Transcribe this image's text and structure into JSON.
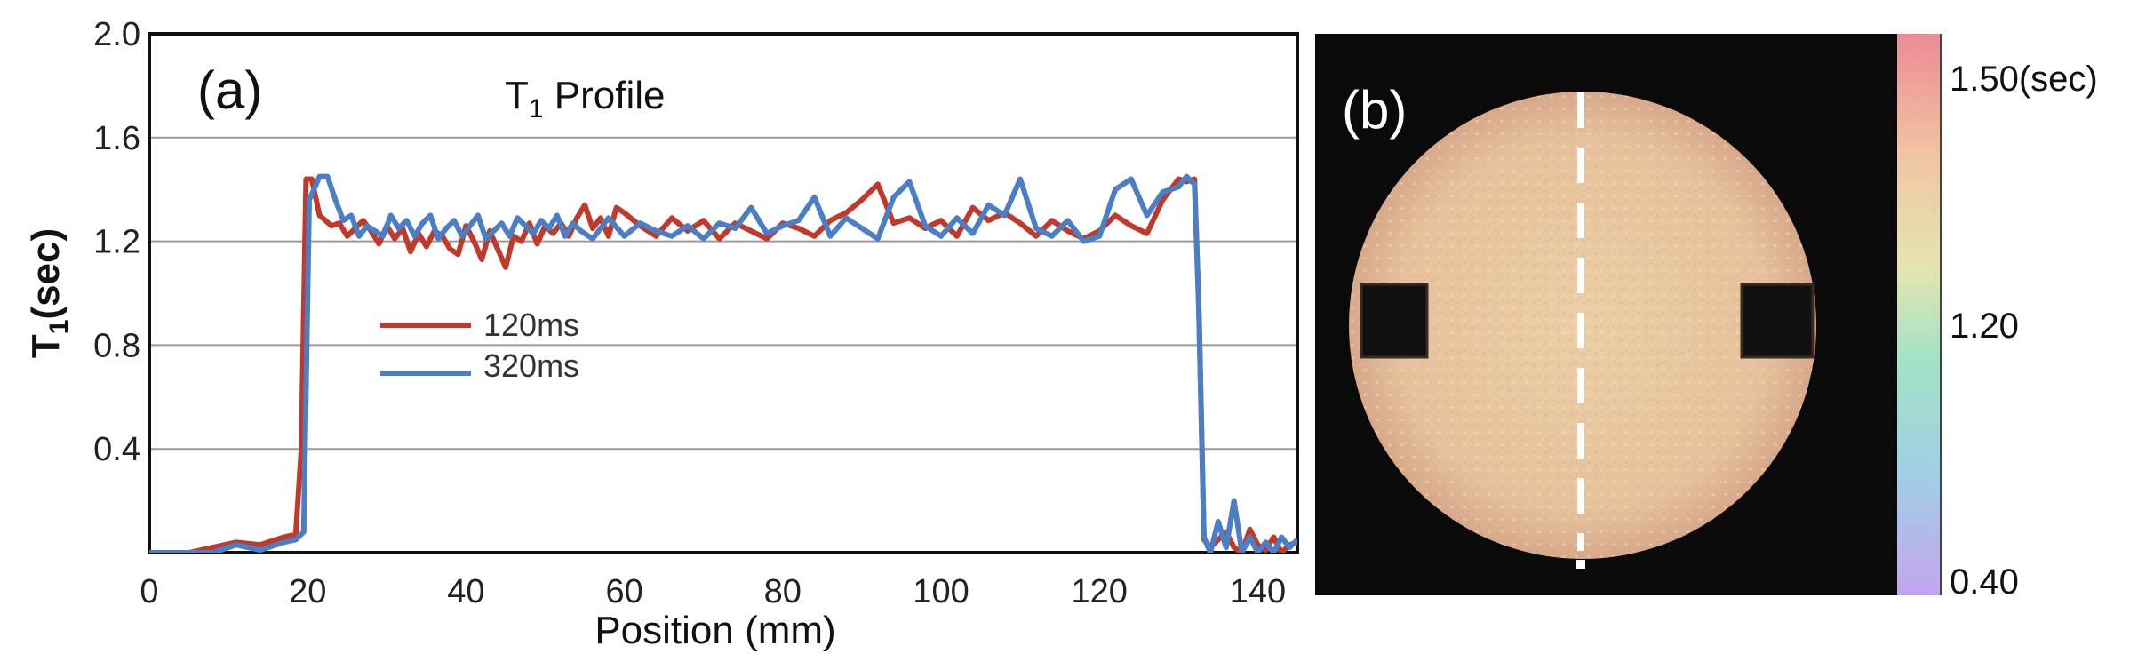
{
  "chart_data": [
    {
      "type": "line",
      "panel_label": "(a)",
      "title_main": "T",
      "title_sub": "1",
      "title_rest": " Profile",
      "xlabel": "Position (mm)",
      "ylabel_main": "T",
      "ylabel_sub": "1",
      "ylabel_rest": "(sec)",
      "xlim": [
        0,
        145
      ],
      "ylim": [
        0,
        2.0
      ],
      "xticks": [
        0,
        20,
        40,
        60,
        80,
        100,
        120,
        140
      ],
      "xtick_labels": [
        "0",
        "20",
        "40",
        "60",
        "80",
        "100",
        "120",
        "140"
      ],
      "yticks": [
        0.4,
        0.8,
        1.2,
        1.6,
        2.0
      ],
      "ytick_labels": [
        "0.4",
        "0.8",
        "1.2",
        "1.6",
        "2.0"
      ],
      "grid": true,
      "legend_position": "center-left",
      "series": [
        {
          "name": "120ms",
          "color": "#c0392b",
          "x": [
            0,
            5,
            8,
            11,
            14,
            17,
            18.5,
            19.2,
            19.8,
            20.5,
            21.5,
            23,
            24,
            25,
            26,
            27,
            28,
            29,
            30,
            31,
            32,
            33,
            34,
            35,
            36,
            37,
            38,
            39,
            40,
            41,
            42,
            43,
            44,
            45,
            46,
            47,
            48,
            49,
            50,
            51,
            52,
            53,
            54,
            55,
            56,
            57,
            58,
            59,
            60,
            62,
            64,
            66,
            68,
            70,
            72,
            74,
            76,
            78,
            80,
            82,
            84,
            86,
            88,
            90,
            92,
            94,
            96,
            98,
            100,
            102,
            104,
            106,
            108,
            110,
            112,
            114,
            116,
            118,
            120,
            122,
            124,
            126,
            128,
            130,
            131,
            132,
            132.6,
            133.2,
            134,
            135,
            136,
            137,
            138,
            139,
            140,
            141,
            142,
            143,
            144,
            145
          ],
          "y": [
            0.0,
            0.0,
            0.02,
            0.04,
            0.03,
            0.06,
            0.07,
            0.4,
            1.44,
            1.44,
            1.3,
            1.26,
            1.27,
            1.22,
            1.25,
            1.28,
            1.24,
            1.19,
            1.26,
            1.21,
            1.25,
            1.16,
            1.23,
            1.18,
            1.24,
            1.22,
            1.17,
            1.15,
            1.26,
            1.2,
            1.13,
            1.24,
            1.17,
            1.1,
            1.22,
            1.2,
            1.27,
            1.19,
            1.26,
            1.23,
            1.27,
            1.22,
            1.29,
            1.34,
            1.25,
            1.29,
            1.22,
            1.33,
            1.31,
            1.26,
            1.22,
            1.29,
            1.24,
            1.28,
            1.21,
            1.27,
            1.24,
            1.21,
            1.27,
            1.25,
            1.22,
            1.28,
            1.31,
            1.36,
            1.42,
            1.27,
            1.29,
            1.25,
            1.28,
            1.22,
            1.33,
            1.28,
            1.31,
            1.27,
            1.22,
            1.28,
            1.24,
            1.21,
            1.24,
            1.3,
            1.26,
            1.23,
            1.36,
            1.44,
            1.43,
            1.44,
            0.9,
            0.05,
            0.02,
            0.05,
            0.08,
            0.02,
            0.0,
            0.09,
            0.03,
            0.01,
            0.06,
            0.0,
            0.03,
            0.04
          ]
        },
        {
          "name": "320ms",
          "color": "#4a7ec5",
          "x": [
            0,
            5,
            8,
            11,
            14,
            17,
            18.5,
            19.5,
            20.2,
            20.8,
            21.5,
            22.5,
            23.5,
            24.5,
            25.5,
            26.5,
            27.5,
            28.5,
            29.5,
            30.5,
            31.5,
            32.5,
            33.5,
            34.5,
            35.5,
            36.5,
            37.5,
            38.5,
            39.5,
            40.5,
            41.5,
            42.5,
            43.5,
            44.5,
            45.5,
            46.5,
            47.5,
            48.5,
            49.5,
            50.5,
            51.5,
            52.5,
            53.5,
            54.5,
            56,
            58,
            60,
            62,
            64,
            66,
            68,
            70,
            72,
            74,
            76,
            78,
            80,
            82,
            84,
            86,
            88,
            90,
            92,
            94,
            96,
            98,
            100,
            102,
            104,
            106,
            108,
            110,
            112,
            114,
            116,
            118,
            120,
            122,
            124,
            126,
            128,
            130,
            131,
            132,
            132.5,
            133.2,
            134,
            135,
            136,
            137,
            138,
            139,
            140,
            141,
            142,
            143,
            144,
            145
          ],
          "y": [
            0.0,
            0.0,
            0.0,
            0.03,
            0.01,
            0.04,
            0.05,
            0.08,
            1.36,
            1.4,
            1.45,
            1.45,
            1.36,
            1.28,
            1.3,
            1.22,
            1.26,
            1.24,
            1.22,
            1.3,
            1.25,
            1.28,
            1.22,
            1.27,
            1.3,
            1.21,
            1.25,
            1.28,
            1.22,
            1.26,
            1.3,
            1.21,
            1.24,
            1.27,
            1.22,
            1.29,
            1.26,
            1.23,
            1.28,
            1.25,
            1.3,
            1.22,
            1.27,
            1.24,
            1.21,
            1.29,
            1.22,
            1.27,
            1.24,
            1.22,
            1.26,
            1.21,
            1.27,
            1.25,
            1.33,
            1.23,
            1.26,
            1.28,
            1.37,
            1.22,
            1.29,
            1.25,
            1.21,
            1.37,
            1.43,
            1.26,
            1.22,
            1.29,
            1.23,
            1.34,
            1.3,
            1.44,
            1.25,
            1.22,
            1.28,
            1.2,
            1.22,
            1.4,
            1.44,
            1.3,
            1.39,
            1.41,
            1.45,
            1.42,
            1.0,
            0.06,
            0.0,
            0.12,
            0.02,
            0.2,
            0.0,
            0.06,
            0.0,
            0.04,
            0.0,
            0.06,
            0.02,
            0.05
          ]
        }
      ]
    },
    {
      "type": "heatmap",
      "panel_label": "(b)",
      "colorbar": {
        "top_label": "1.50(sec)",
        "mid_label": "1.20",
        "bottom_label": "0.40",
        "colors_top_to_bottom": [
          "#ec8a96",
          "#f0c6a2",
          "#e4e4b0",
          "#a3e2c6",
          "#a0cfe5",
          "#c3a6ee"
        ]
      },
      "phantom_color": "#e9c7a0",
      "background_color": "#0a0a0a",
      "profile_line_color": "#ffffff"
    }
  ]
}
